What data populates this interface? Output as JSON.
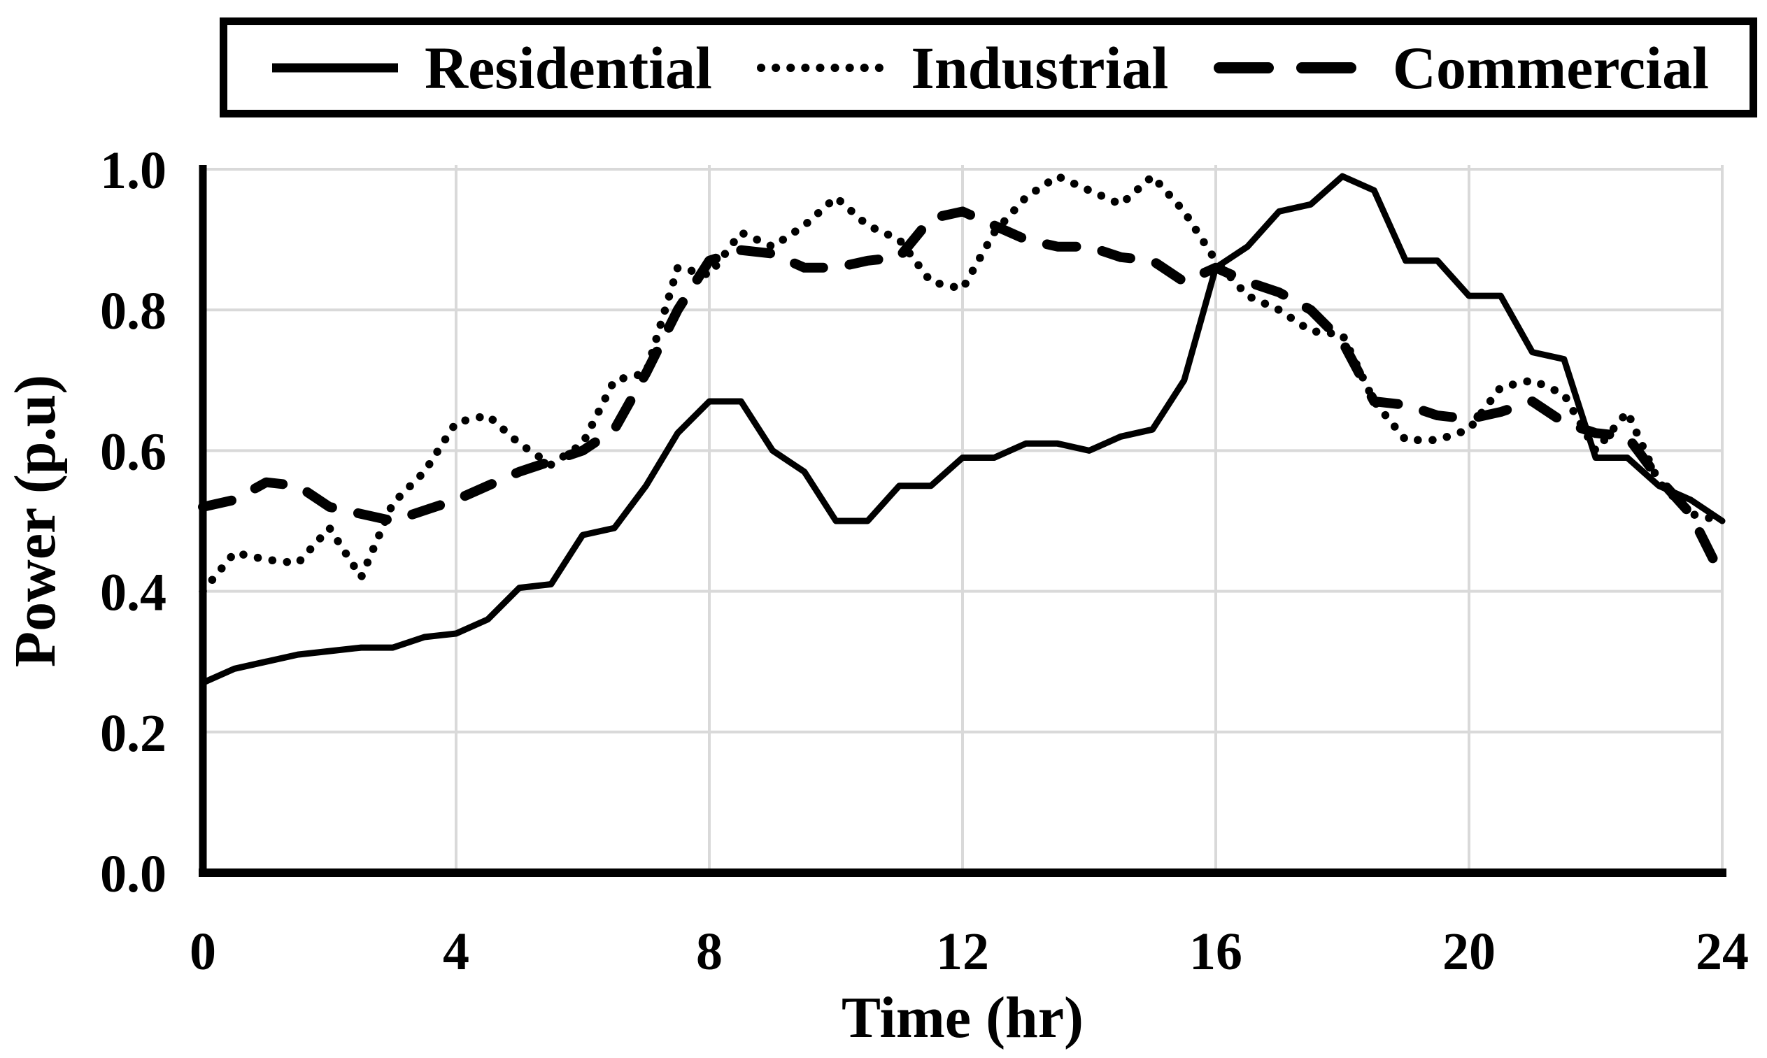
{
  "page": {
    "background_color": "#ffffff",
    "foreground_color": "#000000",
    "gridline_color": "#d9d9d9"
  },
  "legend": {
    "position": "top",
    "entries": [
      {
        "label": "Residential",
        "line_style": "solid"
      },
      {
        "label": "Industrial",
        "line_style": "dotted"
      },
      {
        "label": "Commercial",
        "line_style": "dashed"
      }
    ]
  },
  "chart_data": {
    "type": "line",
    "title": "",
    "xlabel": "Time (hr)",
    "ylabel": "Power (p.u)",
    "xlim": [
      0,
      24
    ],
    "ylim": [
      0.0,
      1.0
    ],
    "grid": true,
    "legend_position": "top",
    "x_ticks": {
      "values": [
        0,
        4,
        8,
        12,
        16,
        20,
        24
      ],
      "labels": [
        "0",
        "4",
        "8",
        "12",
        "16",
        "20",
        "24"
      ]
    },
    "y_ticks": {
      "values": [
        0.0,
        0.2,
        0.4,
        0.6,
        0.8,
        1.0
      ],
      "labels": [
        "0.0",
        "0.2",
        "0.4",
        "0.6",
        "0.8",
        "1.0"
      ]
    },
    "x_start": 0,
    "x_step": 0.5,
    "series": [
      {
        "name": "Residential",
        "line_style": "solid",
        "color": "#000000",
        "values": [
          0.27,
          0.29,
          0.3,
          0.31,
          0.315,
          0.32,
          0.32,
          0.335,
          0.34,
          0.36,
          0.405,
          0.41,
          0.48,
          0.49,
          0.55,
          0.625,
          0.67,
          0.67,
          0.6,
          0.57,
          0.5,
          0.5,
          0.55,
          0.55,
          0.59,
          0.59,
          0.61,
          0.61,
          0.6,
          0.62,
          0.63,
          0.7,
          0.86,
          0.89,
          0.94,
          0.95,
          0.99,
          0.97,
          0.87,
          0.87,
          0.82,
          0.82,
          0.74,
          0.73,
          0.59,
          0.59,
          0.55,
          0.53,
          0.5
        ]
      },
      {
        "name": "Industrial",
        "line_style": "dotted",
        "color": "#000000",
        "values": [
          0.4,
          0.455,
          0.445,
          0.44,
          0.49,
          0.42,
          0.525,
          0.57,
          0.64,
          0.65,
          0.61,
          0.58,
          0.61,
          0.7,
          0.71,
          0.86,
          0.85,
          0.91,
          0.89,
          0.92,
          0.96,
          0.92,
          0.9,
          0.84,
          0.83,
          0.91,
          0.96,
          0.99,
          0.97,
          0.95,
          0.99,
          0.94,
          0.87,
          0.82,
          0.8,
          0.77,
          0.765,
          0.67,
          0.615,
          0.615,
          0.63,
          0.69,
          0.7,
          0.68,
          0.6,
          0.655,
          0.555,
          0.51,
          0.5
        ]
      },
      {
        "name": "Commercial",
        "line_style": "dashed",
        "color": "#000000",
        "values": [
          0.52,
          0.53,
          0.555,
          0.55,
          0.52,
          0.51,
          0.5,
          0.515,
          0.53,
          0.55,
          0.57,
          0.585,
          0.6,
          0.63,
          0.71,
          0.8,
          0.87,
          0.885,
          0.88,
          0.86,
          0.86,
          0.87,
          0.875,
          0.93,
          0.94,
          0.92,
          0.9,
          0.89,
          0.89,
          0.875,
          0.87,
          0.84,
          0.86,
          0.84,
          0.825,
          0.8,
          0.755,
          0.67,
          0.665,
          0.65,
          0.645,
          0.655,
          0.67,
          0.64,
          0.625,
          0.62,
          0.56,
          0.51,
          0.42
        ]
      }
    ]
  }
}
